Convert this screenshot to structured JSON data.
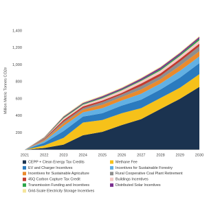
{
  "chart_data": {
    "type": "stacked-area",
    "y_label": "Million Metric Tonnes CO2e",
    "categories": [
      "2021",
      "2022",
      "2023",
      "2024",
      "2025",
      "2026",
      "2027",
      "2028",
      "2029",
      "2030"
    ],
    "ylim": [
      0,
      1400
    ],
    "yticks": [
      200,
      400,
      600,
      800,
      {
        "value": 1000,
        "label": "1,000"
      },
      {
        "value": 1200,
        "label": "1,200"
      },
      {
        "value": 1400,
        "label": "1,400"
      }
    ],
    "grid": false,
    "series": [
      {
        "name": "CEPP + Clean Energy Tax Credits",
        "color": "#1b3350",
        "values": [
          0,
          20,
          60,
          170,
          210,
          290,
          360,
          480,
          600,
          740
        ]
      },
      {
        "name": "Methane Fee",
        "color": "#f6c11a",
        "values": [
          0,
          30,
          80,
          150,
          140,
          140,
          130,
          130,
          130,
          150
        ]
      },
      {
        "name": "EV and Charger Incentives",
        "color": "#2b7bbf",
        "values": [
          0,
          30,
          80,
          70,
          80,
          90,
          100,
          100,
          120,
          130
        ]
      },
      {
        "name": "Incentives for Sustainable Forestry",
        "color": "#62b0e3",
        "values": [
          0,
          20,
          60,
          50,
          60,
          60,
          70,
          70,
          80,
          80
        ]
      },
      {
        "name": "Incentives for Sustainable Agriculture",
        "color": "#ea8a2c",
        "values": [
          0,
          10,
          30,
          30,
          40,
          40,
          50,
          50,
          60,
          60
        ]
      },
      {
        "name": "Rural Cooperative Coal Plant Retirement",
        "color": "#8e8e8e",
        "values": [
          0,
          10,
          20,
          20,
          30,
          30,
          40,
          40,
          50,
          60
        ]
      },
      {
        "name": "45Q Carbon Capture Tax Credit",
        "color": "#c23b2e",
        "values": [
          0,
          10,
          20,
          20,
          20,
          20,
          30,
          30,
          30,
          30
        ]
      },
      {
        "name": "Buildings Incentives",
        "color": "#f3c9c4",
        "values": [
          0,
          5,
          20,
          20,
          25,
          30,
          30,
          35,
          35,
          40
        ]
      },
      {
        "name": "Transmission Funding and Incentives",
        "color": "#2ba64a",
        "values": [
          0,
          5,
          10,
          10,
          10,
          10,
          10,
          15,
          15,
          20
        ]
      },
      {
        "name": "Distributed Solar Incentives",
        "color": "#7b2f8f",
        "values": [
          0,
          5,
          10,
          10,
          15,
          15,
          20,
          20,
          20,
          20
        ]
      },
      {
        "name": "Grid-Scale Electricity Storage Incentives",
        "color": "#f5e59a",
        "values": [
          0,
          5,
          10,
          10,
          10,
          10,
          10,
          10,
          10,
          10
        ]
      }
    ]
  }
}
